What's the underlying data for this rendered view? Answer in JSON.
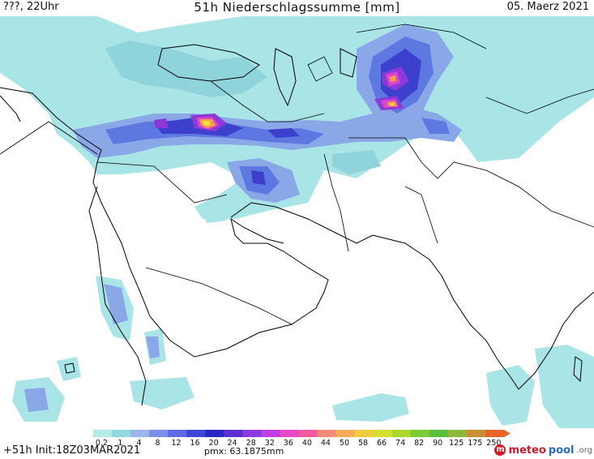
{
  "header": {
    "left": "???, 22Uhr",
    "title": "51h Niederschlagssumme [mm]",
    "date": "05. Maerz 2021"
  },
  "footer": {
    "run": "+51h Init:18Z03MAR2021",
    "pmx": "pmx: 63.1875mm"
  },
  "brand": {
    "part1": "meteo",
    "part2": "pool",
    "suffix": ".org"
  },
  "legend": {
    "labels": [
      "0.2",
      "1",
      "4",
      "8",
      "12",
      "16",
      "20",
      "24",
      "28",
      "32",
      "36",
      "40",
      "44",
      "50",
      "58",
      "66",
      "74",
      "82",
      "90",
      "125",
      "175",
      "250"
    ],
    "colors": [
      "#b6eae6",
      "#8fd8dc",
      "#9bb6ec",
      "#7d8ee9",
      "#5d6ce3",
      "#3f47d8",
      "#2b25c4",
      "#5b2fd2",
      "#8c39de",
      "#c23fe6",
      "#ea46c6",
      "#f35aa0",
      "#f68a79",
      "#f5ac5b",
      "#f0cc3f",
      "#d7df2e",
      "#a9d82f",
      "#7ccd34",
      "#58c03a",
      "#8eb83a",
      "#c89030",
      "#e8642a"
    ]
  },
  "colors": {
    "light": "#a9e4e7",
    "light2": "#8fd3db",
    "mid": "#8aa8e8",
    "blue": "#5e78e2",
    "deep": "#3c40cc",
    "purple": "#8a3ad8",
    "magenta": "#e044c8",
    "orange": "#f3a04a",
    "yellow": "#f3e040"
  }
}
